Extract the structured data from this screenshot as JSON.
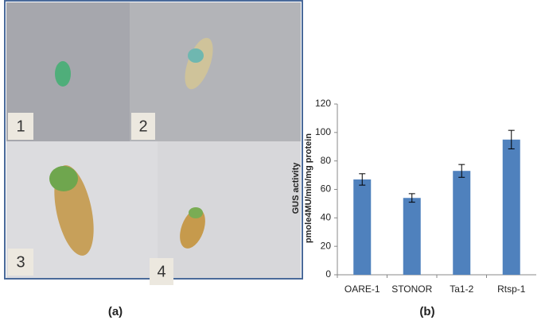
{
  "panels": {
    "a": {
      "label": "(a)",
      "photo_numbers": [
        "1",
        "2",
        "3",
        "4"
      ]
    }
  },
  "chart_data": {
    "type": "bar",
    "panel_label": "(b)",
    "y_label": [
      "GUS activity",
      "pmole4MU/min/mg protein"
    ],
    "categories": [
      "OARE-1",
      "STONOR",
      "Ta1-2",
      "Rtsp-1"
    ],
    "values": [
      67,
      54,
      73,
      95
    ],
    "errors": [
      4,
      3,
      4.5,
      6.5
    ],
    "color": "#4f81bd",
    "ylim": [
      0,
      120
    ],
    "yticks": [
      0,
      20,
      40,
      60,
      80,
      100,
      120
    ],
    "grid": false
  }
}
